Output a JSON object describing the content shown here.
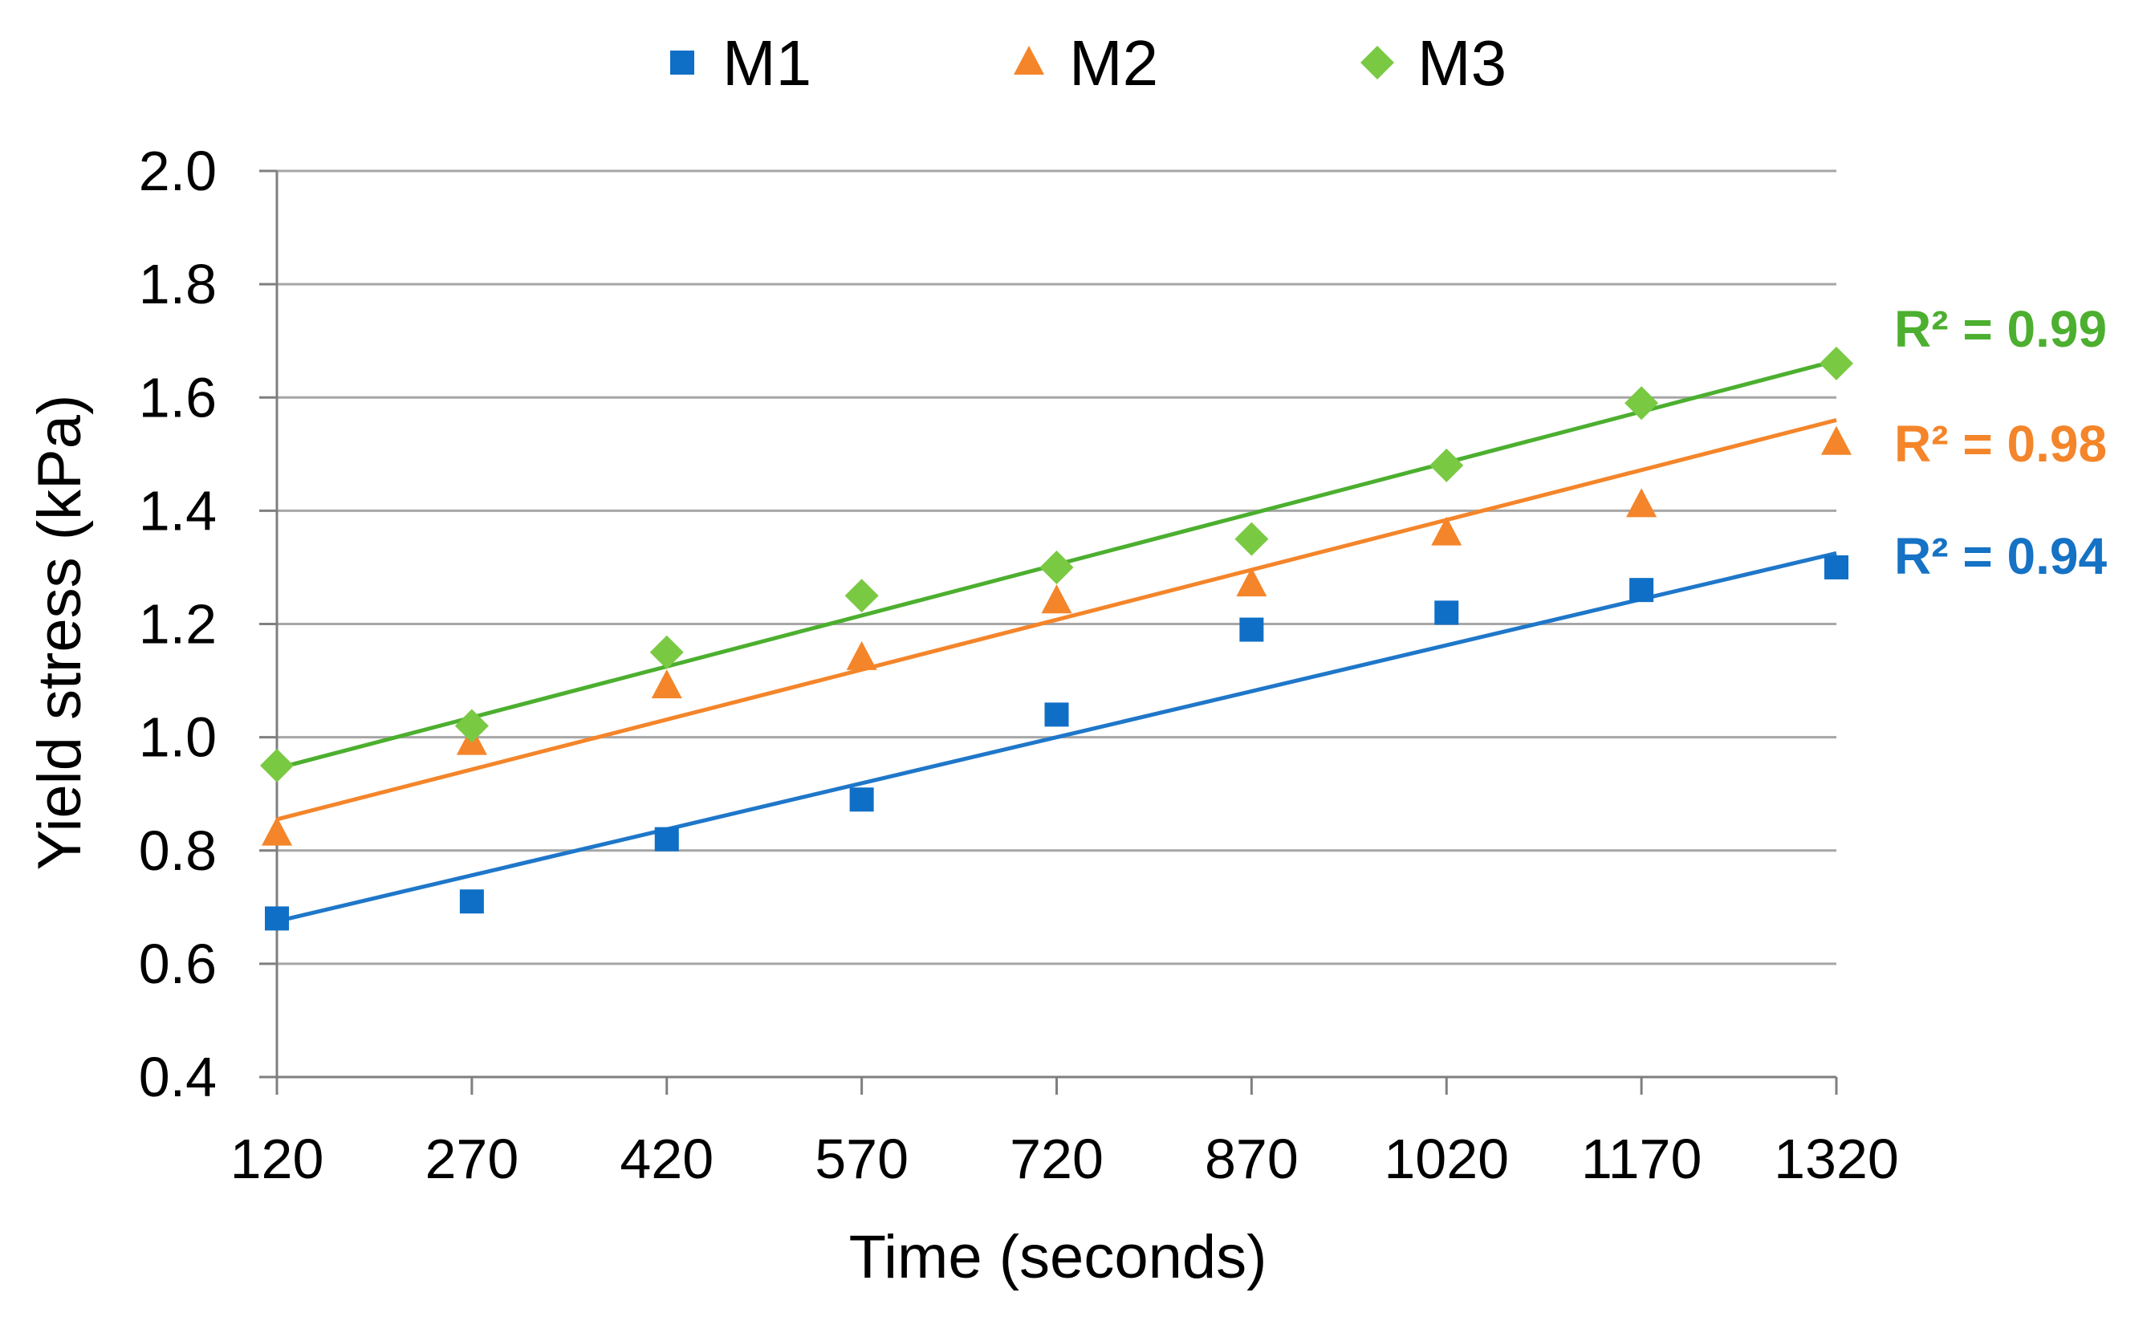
{
  "chart_data": {
    "type": "scatter",
    "title": "",
    "xlabel": "Time (seconds)",
    "ylabel": "Yield stress (kPa)",
    "x": [
      120,
      270,
      420,
      570,
      720,
      870,
      1020,
      1170,
      1320
    ],
    "x_tick_labels": [
      "120",
      "270",
      "420",
      "570",
      "720",
      "870",
      "1020",
      "1170",
      "1320"
    ],
    "y_tick_labels": [
      "0.4",
      "0.6",
      "0.8",
      "1.0",
      "1.2",
      "1.4",
      "1.6",
      "1.8",
      "2.0"
    ],
    "y_ticks": [
      0.4,
      0.6,
      0.8,
      1.0,
      1.2,
      1.4,
      1.6,
      1.8,
      2.0
    ],
    "xlim": [
      120,
      1320
    ],
    "ylim": [
      0.4,
      2.0
    ],
    "grid": "horizontal",
    "legend_position": "top-center",
    "series": [
      {
        "name": "M1",
        "marker": "square",
        "color": "#0f6fc6",
        "line_color": "#1f77c9",
        "values": [
          0.68,
          0.71,
          0.82,
          0.89,
          1.04,
          1.19,
          1.22,
          1.26,
          1.3
        ],
        "trendline": [
          0.675,
          1.325
        ],
        "r2_label": "R² = 0.94",
        "r2_color": "#1572c4"
      },
      {
        "name": "M2",
        "marker": "triangle",
        "color": "#f4852a",
        "line_color": "#f4852a",
        "values": [
          0.83,
          0.99,
          1.09,
          1.14,
          1.24,
          1.27,
          1.36,
          1.41,
          1.52
        ],
        "trendline": [
          0.855,
          1.56
        ],
        "r2_label": "R² = 0.98",
        "r2_color": "#f4852a"
      },
      {
        "name": "M3",
        "marker": "diamond",
        "color": "#7ac943",
        "line_color": "#4caf2f",
        "values": [
          0.95,
          1.02,
          1.15,
          1.25,
          1.3,
          1.35,
          1.48,
          1.59,
          1.66
        ],
        "trendline": [
          0.945,
          1.665
        ],
        "r2_label": "R² = 0.99",
        "r2_color": "#4caf2f"
      }
    ]
  }
}
